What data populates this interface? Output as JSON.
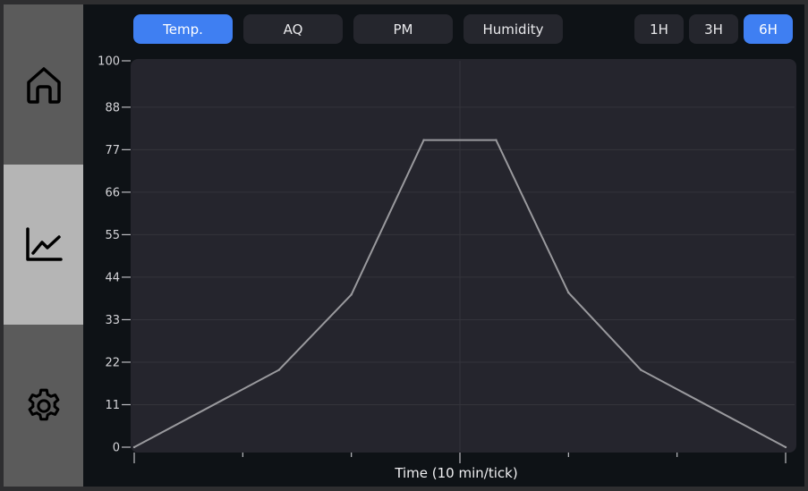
{
  "sidebar": {
    "items": [
      {
        "name": "home",
        "icon": "home-icon"
      },
      {
        "name": "charts",
        "icon": "chart-line-icon",
        "selected": true
      },
      {
        "name": "settings",
        "icon": "gear-icon"
      }
    ]
  },
  "metric_tabs": [
    {
      "label": "Temp.",
      "active": true
    },
    {
      "label": "AQ",
      "active": false
    },
    {
      "label": "PM",
      "active": false
    },
    {
      "label": "Humidity",
      "active": false
    }
  ],
  "range_tabs": [
    {
      "label": "1H",
      "active": false
    },
    {
      "label": "3H",
      "active": false
    },
    {
      "label": "6H",
      "active": true
    }
  ],
  "colors": {
    "accent": "#3f7ff2",
    "plot_background": "#25252d",
    "line": "#9a9a9e",
    "sidebar_selected": "#b5b5b5",
    "sidebar_default": "#5b5b5b"
  },
  "chart_data": {
    "type": "line",
    "xlabel": "Time (10 min/tick)",
    "ylabel": "",
    "ylim": [
      0,
      100
    ],
    "yticks": [
      0,
      11,
      22,
      33,
      44,
      55,
      66,
      77,
      88,
      100
    ],
    "xlim": [
      0,
      36
    ],
    "xticks": [
      0,
      6,
      12,
      18,
      24,
      30,
      36
    ],
    "grid": true,
    "series": [
      {
        "x": [
          0,
          8,
          12,
          16,
          20,
          24,
          28,
          36
        ],
        "values": [
          0,
          20,
          39.5,
          79.5,
          79.5,
          40,
          20,
          0
        ]
      }
    ]
  }
}
